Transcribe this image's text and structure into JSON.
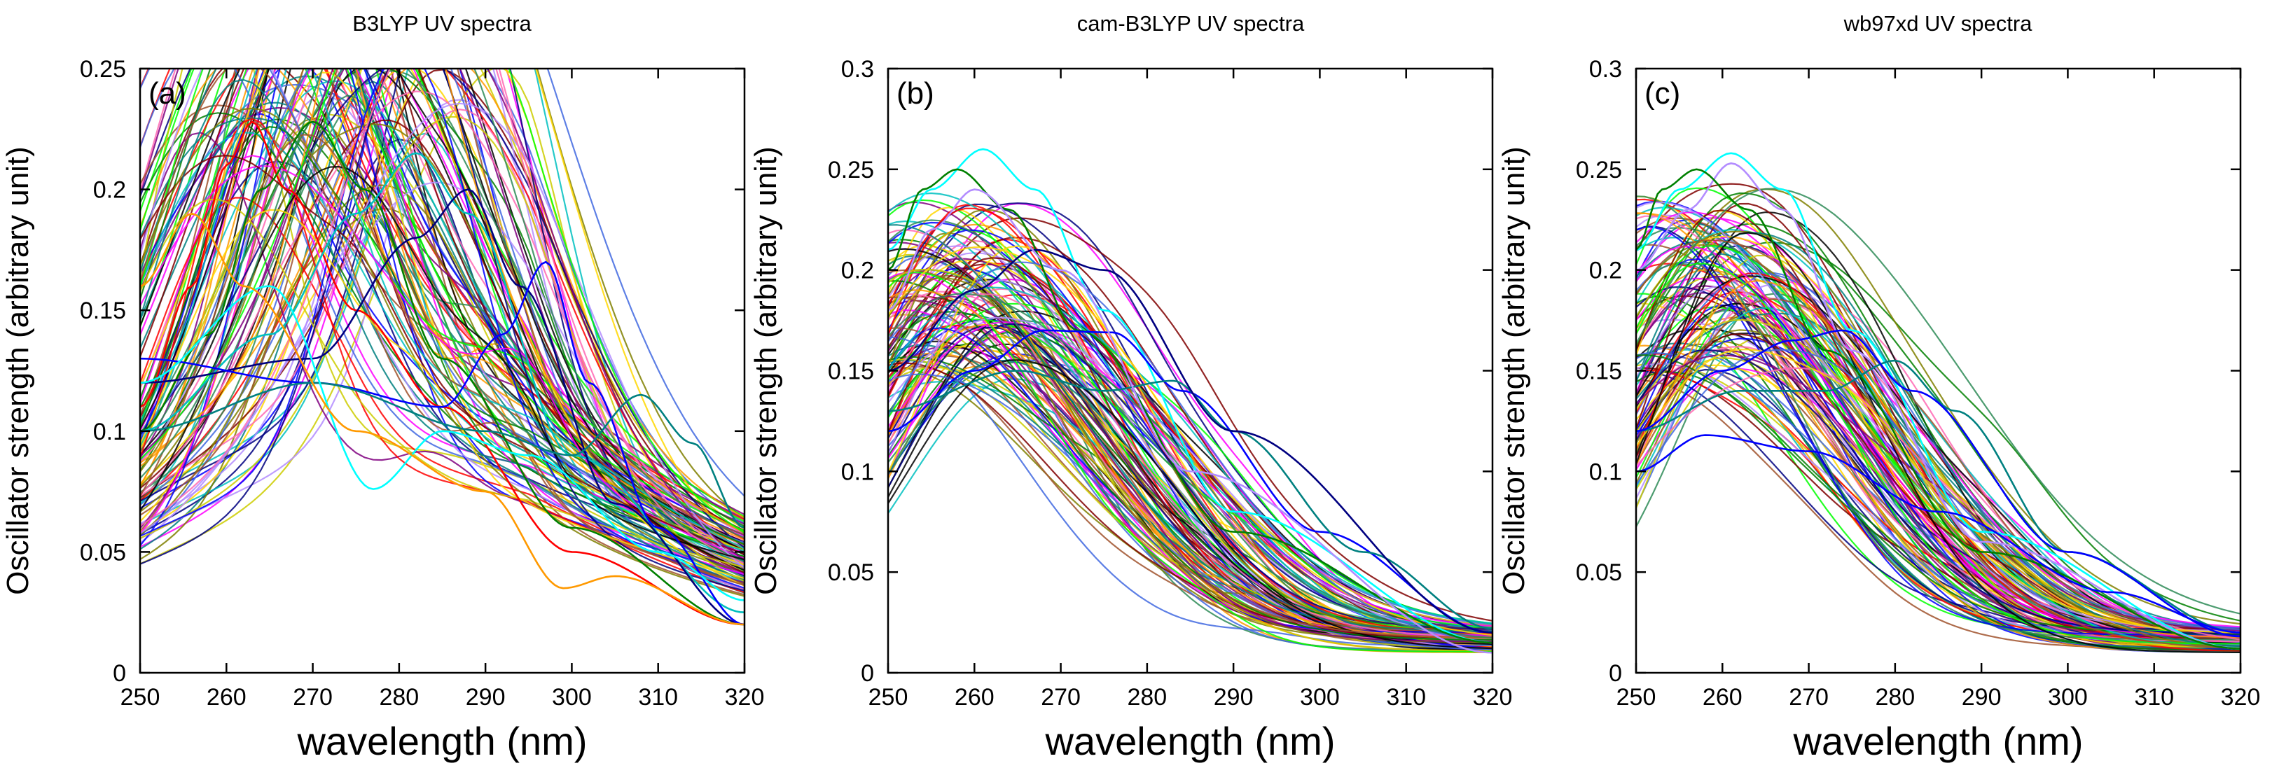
{
  "chart_data": [
    {
      "type": "line",
      "title": "B3LYP UV spectra",
      "panel_label": "(a)",
      "xlabel": "wavelength (nm)",
      "ylabel": "Oscillator strength (arbitrary unit)",
      "xlim": [
        250,
        320
      ],
      "ylim": [
        0,
        0.25
      ],
      "xticks": [
        250,
        260,
        270,
        280,
        290,
        300,
        310,
        320
      ],
      "yticks": [
        0,
        0.05,
        0.1,
        0.15,
        0.2,
        0.25
      ],
      "ytick_labels": [
        "0",
        "0.05",
        "0.1",
        "0.15",
        "0.2",
        "0.25"
      ],
      "series_count": 120,
      "highlighted_series": [
        {
          "name": "red peak",
          "color": "#ff0000",
          "x": [
            250,
            256,
            260,
            263,
            267,
            275,
            285,
            300,
            320
          ],
          "y": [
            0.11,
            0.16,
            0.21,
            0.228,
            0.2,
            0.15,
            0.11,
            0.05,
            0.02
          ]
        },
        {
          "name": "green peak",
          "color": "#008000",
          "x": [
            250,
            258,
            264,
            270,
            276,
            285,
            300,
            320
          ],
          "y": [
            0.1,
            0.14,
            0.2,
            0.228,
            0.2,
            0.13,
            0.06,
            0.02
          ]
        },
        {
          "name": "cyan peak",
          "color": "#00bfbf",
          "x": [
            250,
            265,
            275,
            282,
            288,
            300,
            320
          ],
          "y": [
            0.1,
            0.14,
            0.19,
            0.215,
            0.19,
            0.09,
            0.025
          ]
        },
        {
          "name": "navy peak",
          "color": "#000080",
          "x": [
            250,
            270,
            282,
            288,
            294,
            305,
            320
          ],
          "y": [
            0.12,
            0.13,
            0.18,
            0.2,
            0.16,
            0.07,
            0.02
          ]
        },
        {
          "name": "blue late peak",
          "color": "#0000ff",
          "x": [
            250,
            270,
            285,
            292,
            297,
            302,
            310,
            320
          ],
          "y": [
            0.13,
            0.12,
            0.11,
            0.14,
            0.17,
            0.12,
            0.06,
            0.02
          ]
        },
        {
          "name": "teal shoulder",
          "color": "#008080",
          "x": [
            250,
            270,
            290,
            300,
            308,
            314,
            320
          ],
          "y": [
            0.1,
            0.12,
            0.1,
            0.09,
            0.115,
            0.095,
            0.06
          ]
        },
        {
          "name": "cyan dip",
          "color": "#00ffff",
          "x": [
            250,
            265,
            277,
            285,
            295,
            310,
            320
          ],
          "y": [
            0.12,
            0.16,
            0.076,
            0.1,
            0.09,
            0.05,
            0.03
          ]
        },
        {
          "name": "orange",
          "color": "#ff9900",
          "x": [
            250,
            256,
            262,
            275,
            290,
            299,
            305,
            320
          ],
          "y": [
            0.16,
            0.19,
            0.16,
            0.1,
            0.075,
            0.035,
            0.04,
            0.02
          ]
        }
      ]
    },
    {
      "type": "line",
      "title": "cam-B3LYP UV spectra",
      "panel_label": "(b)",
      "xlabel": "wavelength (nm)",
      "ylabel": "Oscillator strength (arbitrary unit)",
      "xlim": [
        250,
        320
      ],
      "ylim": [
        0,
        0.3
      ],
      "xticks": [
        250,
        260,
        270,
        280,
        290,
        300,
        310,
        320
      ],
      "yticks": [
        0,
        0.05,
        0.1,
        0.15,
        0.2,
        0.25,
        0.3
      ],
      "ytick_labels": [
        "0",
        "0.05",
        "0.1",
        "0.15",
        "0.2",
        "0.25",
        "0.3"
      ],
      "series_count": 120,
      "highlighted_series": [
        {
          "name": "cyan peak",
          "color": "#00ffff",
          "x": [
            250,
            255,
            261,
            267,
            275,
            290,
            320
          ],
          "y": [
            0.21,
            0.24,
            0.26,
            0.24,
            0.18,
            0.08,
            0.015
          ]
        },
        {
          "name": "green peak",
          "color": "#008000",
          "x": [
            250,
            254,
            258,
            264,
            272,
            290,
            320
          ],
          "y": [
            0.2,
            0.24,
            0.25,
            0.23,
            0.17,
            0.07,
            0.015
          ]
        },
        {
          "name": "blue late peak",
          "color": "#0000ff",
          "x": [
            250,
            260,
            268,
            276,
            284,
            300,
            320
          ],
          "y": [
            0.12,
            0.15,
            0.17,
            0.169,
            0.14,
            0.07,
            0.02
          ]
        },
        {
          "name": "teal late peak",
          "color": "#008080",
          "x": [
            250,
            265,
            275,
            283,
            290,
            305,
            320
          ],
          "y": [
            0.13,
            0.15,
            0.14,
            0.145,
            0.12,
            0.06,
            0.022
          ]
        },
        {
          "name": "navy",
          "color": "#000080",
          "x": [
            250,
            260,
            267,
            275,
            290,
            320
          ],
          "y": [
            0.15,
            0.19,
            0.21,
            0.2,
            0.12,
            0.02
          ]
        },
        {
          "name": "lavender",
          "color": "#b38cff",
          "x": [
            250,
            255,
            260,
            270,
            285,
            320
          ],
          "y": [
            0.18,
            0.22,
            0.24,
            0.2,
            0.1,
            0.01
          ]
        }
      ]
    },
    {
      "type": "line",
      "title": "wb97xd UV spectra",
      "panel_label": "(c)",
      "xlabel": "wavelength (nm)",
      "ylabel": "Oscillator strength (arbitrary unit)",
      "xlim": [
        250,
        320
      ],
      "ylim": [
        0,
        0.3
      ],
      "xticks": [
        250,
        260,
        270,
        280,
        290,
        300,
        310,
        320
      ],
      "yticks": [
        0,
        0.05,
        0.1,
        0.15,
        0.2,
        0.25,
        0.3
      ],
      "ytick_labels": [
        "0",
        "0.05",
        "0.1",
        "0.15",
        "0.2",
        "0.25",
        "0.3"
      ],
      "series_count": 120,
      "highlighted_series": [
        {
          "name": "cyan peak",
          "color": "#00ffff",
          "x": [
            250,
            255,
            261,
            267,
            275,
            290,
            320
          ],
          "y": [
            0.21,
            0.24,
            0.258,
            0.24,
            0.17,
            0.07,
            0.012
          ]
        },
        {
          "name": "violet peak",
          "color": "#b38cff",
          "x": [
            250,
            256,
            261,
            267,
            275,
            290,
            320
          ],
          "y": [
            0.2,
            0.23,
            0.253,
            0.23,
            0.16,
            0.065,
            0.012
          ]
        },
        {
          "name": "teal late peak",
          "color": "#008080",
          "x": [
            250,
            262,
            272,
            280,
            287,
            300,
            320
          ],
          "y": [
            0.12,
            0.14,
            0.14,
            0.155,
            0.13,
            0.06,
            0.02
          ]
        },
        {
          "name": "blue",
          "color": "#0000ff",
          "x": [
            250,
            260,
            268,
            274,
            282,
            300,
            320
          ],
          "y": [
            0.12,
            0.15,
            0.165,
            0.17,
            0.14,
            0.06,
            0.018
          ]
        },
        {
          "name": "green",
          "color": "#008000",
          "x": [
            250,
            253,
            257,
            263,
            272,
            290,
            320
          ],
          "y": [
            0.21,
            0.24,
            0.25,
            0.23,
            0.16,
            0.06,
            0.012
          ]
        },
        {
          "name": "flat blue",
          "color": "#0000ff",
          "x": [
            250,
            258,
            270,
            285,
            305,
            320
          ],
          "y": [
            0.1,
            0.118,
            0.11,
            0.08,
            0.04,
            0.02
          ]
        }
      ]
    }
  ]
}
